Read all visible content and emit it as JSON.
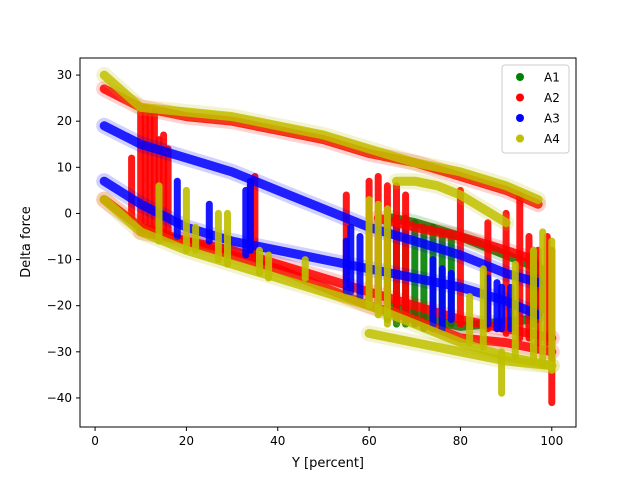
{
  "chart_data": {
    "type": "scatter",
    "title": "",
    "xlabel": "Y [percent]",
    "ylabel": "Delta force",
    "xlim": [
      -3.3,
      105.3
    ],
    "ylim": [
      -46.3,
      33.7
    ],
    "xticks": [
      0,
      20,
      40,
      60,
      80,
      100
    ],
    "yticks": [
      -40,
      -30,
      -20,
      -10,
      0,
      10,
      20,
      30
    ],
    "grid": false,
    "legend_position": "top-right",
    "series": [
      {
        "name": "A1",
        "color": "#008000",
        "curves": [
          [
            [
              65,
              -1
            ],
            [
              70,
              -2
            ],
            [
              75,
              -3.5
            ],
            [
              80,
              -5
            ],
            [
              85,
              -7
            ],
            [
              90,
              -9
            ],
            [
              95,
              -11
            ],
            [
              97,
              -12
            ]
          ],
          [
            [
              65,
              -20
            ],
            [
              70,
              -22
            ],
            [
              75,
              -23.5
            ],
            [
              80,
              -24.5
            ],
            [
              85,
              -24
            ],
            [
              90,
              -23.5
            ],
            [
              95,
              -23
            ],
            [
              97,
              -22
            ]
          ]
        ],
        "spikes": [
          [
            [
              62,
              -20
            ],
            [
              62,
              -5
            ]
          ],
          [
            [
              64,
              -23
            ],
            [
              64,
              -2
            ]
          ],
          [
            [
              66,
              -24
            ],
            [
              66,
              -1
            ]
          ],
          [
            [
              68,
              -24
            ],
            [
              68,
              -1
            ]
          ],
          [
            [
              70,
              -24
            ],
            [
              70,
              -2
            ]
          ],
          [
            [
              72,
              -25
            ],
            [
              72,
              -3
            ]
          ],
          [
            [
              74,
              -25
            ],
            [
              74,
              -3
            ]
          ],
          [
            [
              76,
              -24
            ],
            [
              76,
              -4
            ]
          ],
          [
            [
              78,
              -24
            ],
            [
              78,
              -5
            ]
          ],
          [
            [
              96,
              -24
            ],
            [
              96,
              -8
            ]
          ],
          [
            [
              97,
              -23
            ],
            [
              97,
              -11
            ]
          ],
          [
            [
              98,
              -21
            ],
            [
              98,
              -12
            ]
          ]
        ]
      },
      {
        "name": "A2",
        "color": "#ff0000",
        "curves": [
          [
            [
              2,
              27
            ],
            [
              10,
              23
            ],
            [
              20,
              21
            ],
            [
              30,
              20
            ],
            [
              40,
              18
            ],
            [
              50,
              16
            ],
            [
              60,
              13
            ],
            [
              70,
              11
            ],
            [
              80,
              8
            ],
            [
              90,
              5
            ],
            [
              97,
              2
            ]
          ],
          [
            [
              2,
              3
            ],
            [
              10,
              -3
            ],
            [
              20,
              -6
            ],
            [
              30,
              -9
            ],
            [
              40,
              -12
            ],
            [
              50,
              -16
            ],
            [
              60,
              -20
            ],
            [
              70,
              -23
            ],
            [
              80,
              -27
            ],
            [
              90,
              -28
            ],
            [
              100,
              -30
            ]
          ],
          [
            [
              62,
              -1
            ],
            [
              70,
              -3
            ],
            [
              80,
              -5
            ],
            [
              90,
              -8
            ],
            [
              96,
              -10
            ]
          ],
          [
            [
              10,
              -4
            ],
            [
              20,
              -6
            ],
            [
              30,
              -8
            ],
            [
              40,
              -11
            ],
            [
              50,
              -14
            ],
            [
              60,
              -17
            ],
            [
              70,
              -20
            ],
            [
              80,
              -23
            ],
            [
              90,
              -25
            ],
            [
              100,
              -27
            ]
          ]
        ],
        "spikes": [
          [
            [
              8,
              -1
            ],
            [
              8,
              12
            ]
          ],
          [
            [
              10,
              -2
            ],
            [
              10,
              22
            ]
          ],
          [
            [
              11,
              -3
            ],
            [
              11,
              23
            ]
          ],
          [
            [
              12,
              -3
            ],
            [
              12,
              21
            ]
          ],
          [
            [
              13,
              -4
            ],
            [
              13,
              22
            ]
          ],
          [
            [
              14,
              -4
            ],
            [
              14,
              16
            ]
          ],
          [
            [
              15,
              -5
            ],
            [
              15,
              17
            ]
          ],
          [
            [
              16,
              -5
            ],
            [
              16,
              14
            ]
          ],
          [
            [
              34,
              -9
            ],
            [
              34,
              6
            ]
          ],
          [
            [
              35,
              -9
            ],
            [
              35,
              8
            ]
          ],
          [
            [
              55,
              -17
            ],
            [
              55,
              4
            ]
          ],
          [
            [
              60,
              -19
            ],
            [
              60,
              7
            ]
          ],
          [
            [
              62,
              -19
            ],
            [
              62,
              8
            ]
          ],
          [
            [
              64,
              -20
            ],
            [
              64,
              6
            ]
          ],
          [
            [
              66,
              -21
            ],
            [
              66,
              6
            ]
          ],
          [
            [
              68,
              -22
            ],
            [
              68,
              4
            ]
          ],
          [
            [
              80,
              -24
            ],
            [
              80,
              5
            ]
          ],
          [
            [
              86,
              -25
            ],
            [
              86,
              -2
            ]
          ],
          [
            [
              90,
              -26
            ],
            [
              90,
              0
            ]
          ],
          [
            [
              93,
              -27
            ],
            [
              93,
              4
            ]
          ],
          [
            [
              95,
              -27
            ],
            [
              95,
              -5
            ]
          ],
          [
            [
              97,
              -28
            ],
            [
              97,
              -8
            ]
          ],
          [
            [
              99,
              -28
            ],
            [
              99,
              -5
            ]
          ],
          [
            [
              100,
              -41
            ],
            [
              100,
              -8
            ]
          ]
        ]
      },
      {
        "name": "A3",
        "color": "#0000ff",
        "curves": [
          [
            [
              2,
              19
            ],
            [
              10,
              15
            ],
            [
              20,
              12
            ],
            [
              30,
              9
            ],
            [
              40,
              5
            ],
            [
              50,
              1
            ],
            [
              60,
              -3
            ],
            [
              70,
              -6
            ],
            [
              80,
              -9
            ],
            [
              90,
              -13
            ],
            [
              97,
              -15
            ]
          ],
          [
            [
              2,
              7
            ],
            [
              10,
              2
            ],
            [
              20,
              -3
            ],
            [
              30,
              -6
            ],
            [
              40,
              -8
            ],
            [
              50,
              -10
            ],
            [
              60,
              -12
            ],
            [
              70,
              -14
            ],
            [
              80,
              -16
            ],
            [
              90,
              -19
            ],
            [
              97,
              -22
            ]
          ]
        ],
        "spikes": [
          [
            [
              18,
              -5
            ],
            [
              18,
              7
            ]
          ],
          [
            [
              25,
              -6
            ],
            [
              25,
              2
            ]
          ],
          [
            [
              33,
              -9
            ],
            [
              33,
              5
            ]
          ],
          [
            [
              34,
              -8
            ],
            [
              34,
              7
            ]
          ],
          [
            [
              55,
              -17
            ],
            [
              55,
              -6
            ]
          ],
          [
            [
              56,
              -17
            ],
            [
              56,
              -3
            ]
          ],
          [
            [
              58,
              -18
            ],
            [
              58,
              -5
            ]
          ],
          [
            [
              74,
              -24
            ],
            [
              74,
              -10
            ]
          ],
          [
            [
              76,
              -25
            ],
            [
              76,
              -12
            ]
          ],
          [
            [
              78,
              -23
            ],
            [
              78,
              -13
            ]
          ],
          [
            [
              86,
              -24
            ],
            [
              86,
              -14
            ]
          ],
          [
            [
              88,
              -25
            ],
            [
              88,
              -15
            ]
          ],
          [
            [
              89,
              -25
            ],
            [
              89,
              -16
            ]
          ],
          [
            [
              91,
              -25
            ],
            [
              91,
              -16
            ]
          ]
        ]
      },
      {
        "name": "A4",
        "color": "#bfbf00",
        "curves": [
          [
            [
              2,
              30
            ],
            [
              10,
              23
            ],
            [
              20,
              22
            ],
            [
              30,
              21
            ],
            [
              40,
              19
            ],
            [
              50,
              17
            ],
            [
              60,
              14
            ],
            [
              70,
              11
            ],
            [
              80,
              9
            ],
            [
              90,
              6
            ],
            [
              97,
              3
            ]
          ],
          [
            [
              2,
              3
            ],
            [
              10,
              -4
            ],
            [
              20,
              -8
            ],
            [
              30,
              -11
            ],
            [
              40,
              -14
            ],
            [
              50,
              -17
            ],
            [
              60,
              -20
            ],
            [
              70,
              -24
            ],
            [
              80,
              -28
            ],
            [
              90,
              -31
            ],
            [
              100,
              -33
            ]
          ],
          [
            [
              66,
              7
            ],
            [
              70,
              7
            ],
            [
              75,
              6
            ],
            [
              80,
              4
            ],
            [
              85,
              1
            ],
            [
              90,
              -2
            ]
          ],
          [
            [
              60,
              -26
            ],
            [
              70,
              -28
            ],
            [
              80,
              -30
            ],
            [
              90,
              -32
            ],
            [
              100,
              -33
            ]
          ]
        ],
        "spikes": [
          [
            [
              14,
              -6
            ],
            [
              14,
              6
            ]
          ],
          [
            [
              20,
              -8
            ],
            [
              20,
              5
            ]
          ],
          [
            [
              22,
              -8
            ],
            [
              22,
              -3
            ]
          ],
          [
            [
              27,
              -10
            ],
            [
              27,
              0
            ]
          ],
          [
            [
              29,
              -11
            ],
            [
              29,
              0
            ]
          ],
          [
            [
              36,
              -13
            ],
            [
              36,
              -8
            ]
          ],
          [
            [
              38,
              -14
            ],
            [
              38,
              -9
            ]
          ],
          [
            [
              46,
              -14
            ],
            [
              46,
              -10
            ]
          ],
          [
            [
              60,
              -20
            ],
            [
              60,
              3
            ]
          ],
          [
            [
              62,
              -22
            ],
            [
              62,
              2
            ]
          ],
          [
            [
              64,
              -24
            ],
            [
              64,
              1
            ]
          ],
          [
            [
              82,
              -28
            ],
            [
              82,
              -18
            ]
          ],
          [
            [
              85,
              -29
            ],
            [
              85,
              -12
            ]
          ],
          [
            [
              89,
              -30
            ],
            [
              89,
              -39
            ]
          ],
          [
            [
              92,
              -31
            ],
            [
              92,
              -11
            ]
          ],
          [
            [
              96,
              -32
            ],
            [
              96,
              -8
            ]
          ],
          [
            [
              98,
              -33
            ],
            [
              98,
              -4
            ]
          ],
          [
            [
              100,
              -34
            ],
            [
              100,
              -6
            ]
          ]
        ]
      }
    ]
  }
}
